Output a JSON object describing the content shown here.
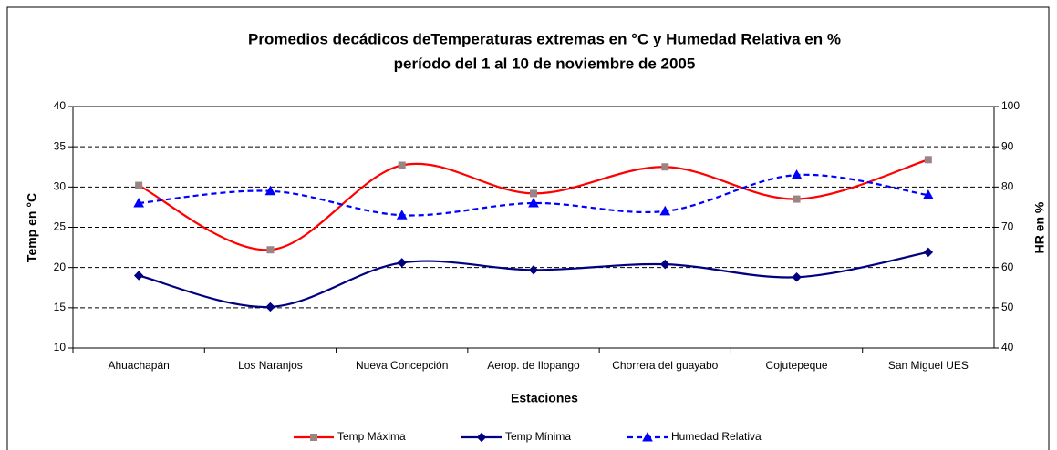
{
  "chart_data": {
    "type": "line",
    "title": "Promedios decádicos deTemperaturas extremas en °C  y Humedad Relativa en %",
    "subtitle": "período del 1 al 10 de noviembre de 2005",
    "x_label": "Estaciones",
    "y_label": "Temp en °C",
    "y2_label": "HR en %",
    "categories": [
      "Ahuachapán",
      "Los Naranjos",
      "Nueva Concepción",
      "Aerop. de Ilopango",
      "Chorrera del guayabo",
      "Cojutepeque",
      "San Miguel UES"
    ],
    "series": [
      {
        "name": "Temp Máxima",
        "color": "#ff0000",
        "marker_color": "#9a8585",
        "marker": "square",
        "dash": false,
        "values": [
          30.2,
          22.2,
          32.7,
          29.2,
          32.5,
          28.5,
          33.4
        ]
      },
      {
        "name": "Temp Mínima",
        "color": "#000080",
        "marker_color": "#000080",
        "marker": "diamond",
        "dash": false,
        "values": [
          19.0,
          15.1,
          20.6,
          19.7,
          20.4,
          18.8,
          21.9
        ]
      },
      {
        "name": "Humedad Relativa",
        "color": "#0000ff",
        "marker_color": "#0000ff",
        "marker": "triangle",
        "dash": true,
        "axis": "y2",
        "values": [
          76,
          79,
          73,
          76,
          74,
          83,
          78
        ]
      }
    ],
    "ylim": [
      10,
      40
    ],
    "yticks": [
      10,
      15,
      20,
      25,
      30,
      35,
      40
    ],
    "y2lim": [
      40,
      100
    ],
    "y2ticks": [
      40,
      50,
      60,
      70,
      80,
      90,
      100
    ],
    "grid": true,
    "smooth": true,
    "legend": "bottom"
  }
}
